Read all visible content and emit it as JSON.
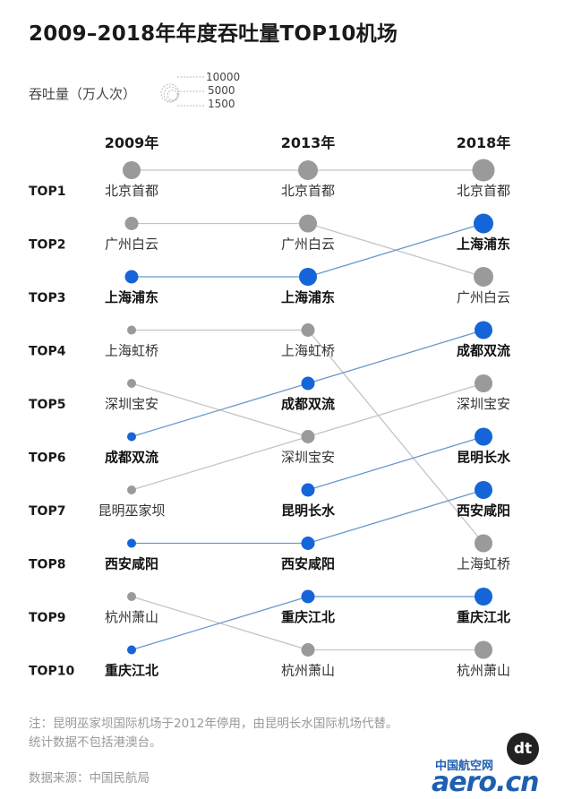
{
  "title": "2009–2018年年度吞吐量TOP10机场",
  "legend": {
    "label": "吞吐量（万人次）",
    "values": [
      "10000",
      "5000",
      "1500"
    ]
  },
  "colors": {
    "gray": "#9a9a9a",
    "blue": "#1565d8",
    "line_gray": "#c4c4c4",
    "line_blue": "#6a98c9"
  },
  "chart_data": {
    "type": "slope",
    "years": [
      "2009年",
      "2013年",
      "2018年"
    ],
    "ranks": [
      "TOP1",
      "TOP2",
      "TOP3",
      "TOP4",
      "TOP5",
      "TOP6",
      "TOP7",
      "TOP8",
      "TOP9",
      "TOP10"
    ],
    "columns": [
      [
        "北京首都",
        "广州白云",
        "上海浦东",
        "上海虹桥",
        "深圳宝安",
        "成都双流",
        "昆明巫家坝",
        "西安咸阳",
        "杭州萧山",
        "重庆江北"
      ],
      [
        "北京首都",
        "广州白云",
        "上海浦东",
        "上海虹桥",
        "成都双流",
        "深圳宝安",
        "昆明长水",
        "西安咸阳",
        "重庆江北",
        "杭州萧山"
      ],
      [
        "北京首都",
        "上海浦东",
        "广州白云",
        "成都双流",
        "深圳宝安",
        "昆明长水",
        "西安咸阳",
        "上海虹桥",
        "重庆江北",
        "杭州萧山"
      ]
    ],
    "highlighted": [
      [
        false,
        false,
        true,
        false,
        false,
        true,
        false,
        true,
        false,
        true
      ],
      [
        false,
        false,
        true,
        false,
        true,
        false,
        true,
        true,
        true,
        false
      ],
      [
        false,
        true,
        false,
        true,
        false,
        true,
        true,
        false,
        true,
        false
      ]
    ],
    "dot_size": [
      [
        3,
        2,
        2,
        1,
        1,
        1,
        1,
        1,
        1,
        1
      ],
      [
        4,
        3,
        3,
        2,
        2,
        2,
        2,
        2,
        2,
        2
      ],
      [
        5,
        4,
        4,
        3,
        3,
        3,
        3,
        3,
        3,
        3
      ]
    ]
  },
  "notes": [
    "注：昆明巫家坝国际机场于2012年停用，由昆明长水国际机场代替。",
    "统计数据不包括港澳台。"
  ],
  "source": "数据来源：中国民航局",
  "logo": {
    "mark": "dt",
    "site_cn": "中国航空网",
    "site": "aero.cn"
  }
}
